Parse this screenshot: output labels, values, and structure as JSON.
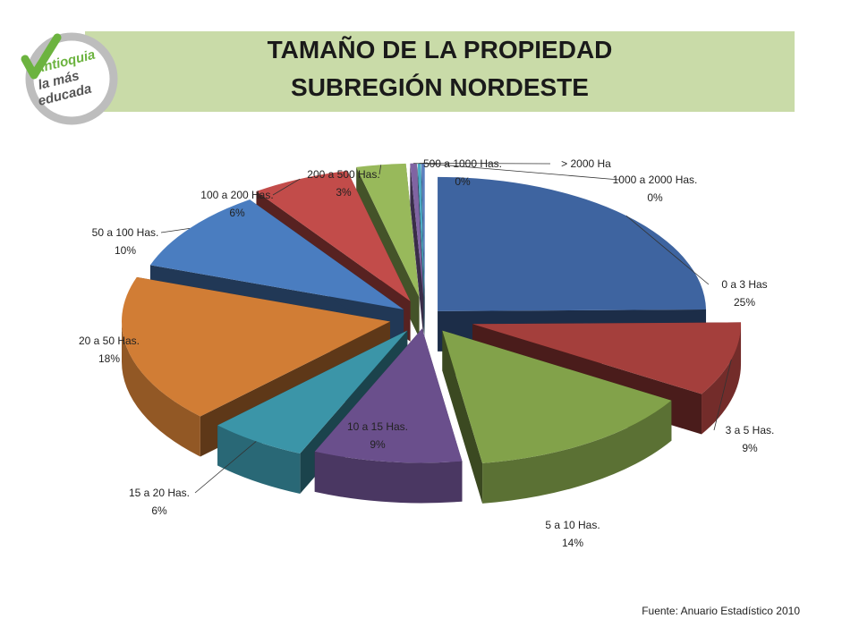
{
  "title": {
    "line1": "TAMAÑO DE LA PROPIEDAD",
    "line2": "SUBREGIÓN NORDESTE"
  },
  "logo": {
    "line1": "Antioquia",
    "line2": "la más",
    "line3": "educada",
    "icon": "checkmark-icon",
    "color": "#6cb33f"
  },
  "source": "Fuente: Anuario Estadístico 2010",
  "chart_data": {
    "type": "pie",
    "style": "3d-exploded",
    "legend": "none",
    "slices": [
      {
        "category": "0 a 3 Has",
        "value": 25,
        "label": "25%",
        "color": "#3e64a0"
      },
      {
        "category": "3 a 5 Has.",
        "value": 9,
        "label": "9%",
        "color": "#a43f3c"
      },
      {
        "category": "5 a 10 Has.",
        "value": 14,
        "label": "14%",
        "color": "#82a24a"
      },
      {
        "category": "10 a 15 Has.",
        "value": 9,
        "label": "9%",
        "color": "#6a4f8c"
      },
      {
        "category": "15 a 20 Has.",
        "value": 6,
        "label": "6%",
        "color": "#3b95a8"
      },
      {
        "category": "20 a 50 Has.",
        "value": 18,
        "label": "18%",
        "color": "#d17d35"
      },
      {
        "category": "50 a  100 Has.",
        "value": 10,
        "label": "10%",
        "color": "#4a7dc0"
      },
      {
        "category": "100 a 200 Has.",
        "value": 6,
        "label": "6%",
        "color": "#c24c4a"
      },
      {
        "category": "200 a 500 Has.",
        "value": 3,
        "label": "3%",
        "color": "#98b95b"
      },
      {
        "category": "500 a 1000 Has.",
        "value": 0.4,
        "label": "0%",
        "color": "#8064a2"
      },
      {
        "category": "> 2000 Ha",
        "value": 0.2,
        "label": "",
        "color": "#4bacc6"
      },
      {
        "category": "1000 a 2000 Has.",
        "value": 0.2,
        "label": "0%",
        "color": "#5b7fbf"
      }
    ]
  }
}
